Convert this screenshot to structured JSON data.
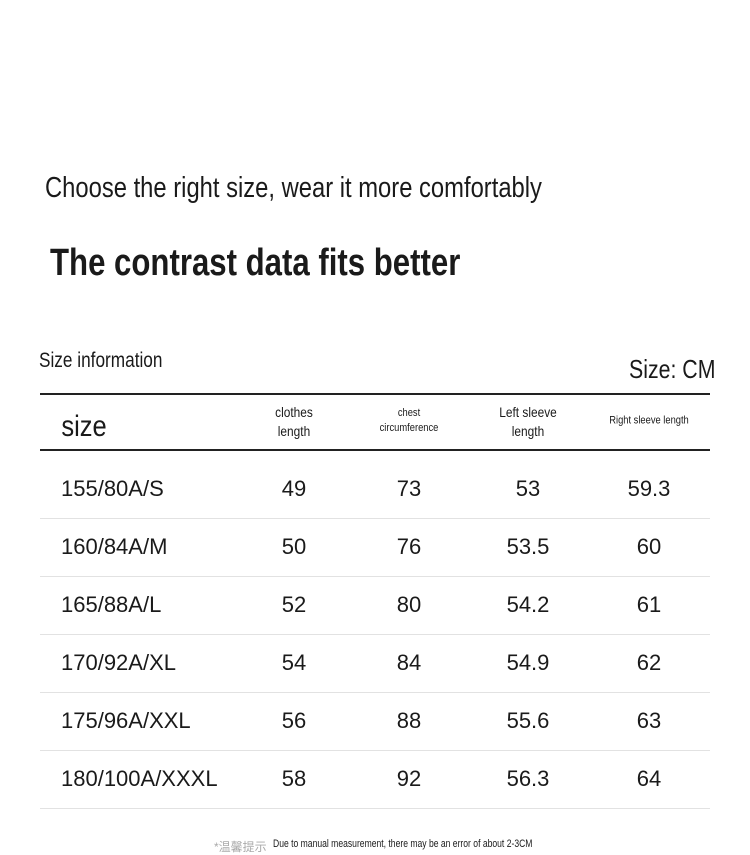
{
  "header": {
    "title": "Choose the right size, wear it more comfortably",
    "subtitle": "The contrast data fits better"
  },
  "table": {
    "caption": "Size information",
    "unit": "Size: CM",
    "columns": [
      "size",
      "clothes length",
      "chest circumference",
      "Left sleeve length",
      "Right sleeve length"
    ],
    "rows": [
      [
        "155/80A/S",
        "49",
        "73",
        "53",
        "59.3"
      ],
      [
        "160/84A/M",
        "50",
        "76",
        "53.5",
        "60"
      ],
      [
        "165/88A/L",
        "52",
        "80",
        "54.2",
        "61"
      ],
      [
        "170/92A/XL",
        "54",
        "84",
        "54.9",
        "62"
      ],
      [
        "175/96A/XXL",
        "56",
        "88",
        "55.6",
        "63"
      ],
      [
        "180/100A/XXXL",
        "58",
        "92",
        "56.3",
        "64"
      ]
    ]
  },
  "footnote": {
    "tag": "*温馨提示",
    "text": "Due to manual measurement, there may be an error of about 2-3CM"
  }
}
